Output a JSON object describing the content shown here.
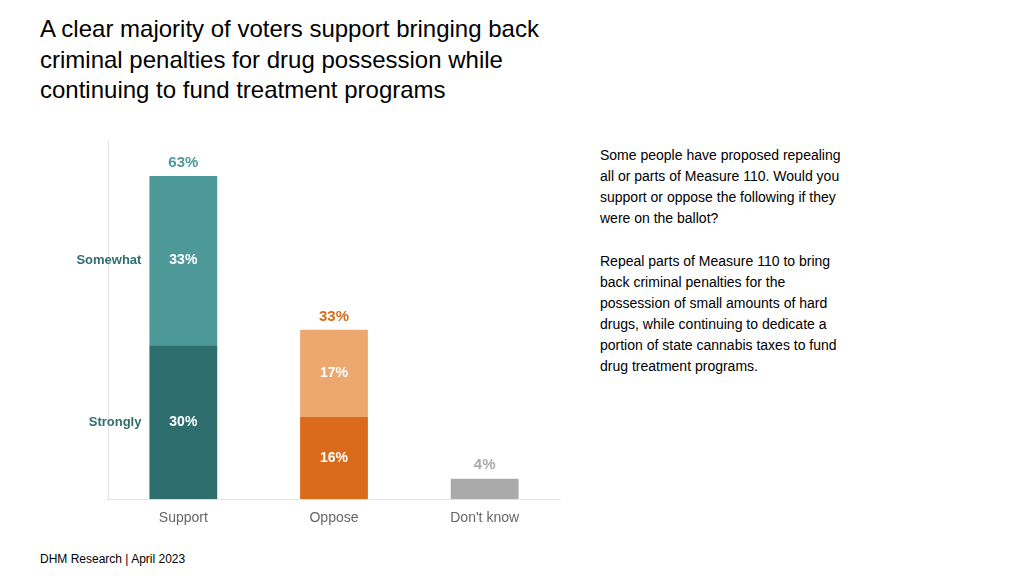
{
  "chart_data": {
    "type": "bar",
    "title": "A clear majority of voters support bringing back\ncriminal penalties for drug possession while\ncontinuing to fund treatment programs",
    "categories": [
      "Support",
      "Oppose",
      "Don't know"
    ],
    "stacked": true,
    "series": [
      {
        "name": "Strongly",
        "colors": [
          "#2e6e6e",
          "#d96b1a",
          "#aaaaaa"
        ],
        "values": [
          30,
          16,
          4
        ],
        "value_labels": [
          "30%",
          "16%",
          null
        ],
        "label_color": "#2e6e6e"
      },
      {
        "name": "Somewhat",
        "colors": [
          "#4d9999",
          "#eda870",
          null
        ],
        "values": [
          33,
          17,
          null
        ],
        "value_labels": [
          "33%",
          "17%",
          null
        ],
        "label_color": "#2e6e6e"
      }
    ],
    "data_labels": true,
    "data_label_color": "#ffffff",
    "annotations": [
      {
        "category": "Support",
        "value": 63,
        "label": "63%",
        "color": "#4d9999"
      },
      {
        "category": "Oppose",
        "value": 33,
        "label": "33%",
        "color": "#d96b1a"
      },
      {
        "category": "Don't know",
        "value": 4,
        "label": "4%",
        "color": "#aaaaaa"
      }
    ],
    "notes": [
      "Some people have proposed repealing\nall or parts of Measure 110. Would you\nsupport or oppose the following if they\nwere on the ballot?",
      "Repeal parts of Measure 110 to bring\nback criminal penalties for the\npossession of small amounts of hard\ndrugs, while continuing to dedicate a\nportion of state cannabis taxes to fund\ndrug treatment programs."
    ],
    "footer": "DHM Research | April 2023",
    "ylim": [
      0,
      70
    ],
    "grid": false,
    "legend": false,
    "tick_labels": "x"
  }
}
